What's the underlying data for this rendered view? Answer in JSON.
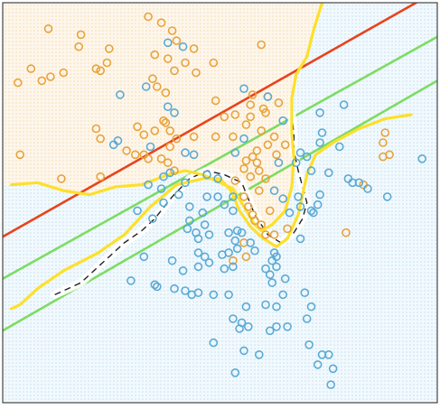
{
  "chart_data": {
    "type": "scatter",
    "title": "",
    "xlabel": "",
    "ylabel": "",
    "xlim": [
      0,
      100
    ],
    "ylim": [
      0,
      100
    ],
    "grid": false,
    "legend": "none",
    "colors": {
      "class_a": "#e8a33a",
      "class_b": "#5aaad6",
      "region_a": "#f6d9a8",
      "region_b": "#bcdff0",
      "linear_boundary": "#e8431c",
      "margin": "#7ddc62",
      "nonlinear_boundary": "#fde02a",
      "dashed_boundary": "#222222",
      "frame": "#444444"
    },
    "series": [
      {
        "class": "orange",
        "points": [
          [
            10.5,
            93.5
          ],
          [
            33.5,
            96.5
          ],
          [
            36.5,
            95
          ],
          [
            18,
            92
          ],
          [
            17.5,
            89
          ],
          [
            24.5,
            88.5
          ],
          [
            39,
            93
          ],
          [
            40,
            90.5
          ],
          [
            59.5,
            89.5
          ],
          [
            44,
            88.5
          ],
          [
            6.5,
            83.5
          ],
          [
            11,
            81.5
          ],
          [
            3.5,
            80
          ],
          [
            9,
            80.5
          ],
          [
            14,
            82.5
          ],
          [
            21.5,
            83.5
          ],
          [
            24,
            85
          ],
          [
            22.5,
            83
          ],
          [
            35,
            87
          ],
          [
            38,
            86
          ],
          [
            42,
            85
          ],
          [
            39.5,
            83
          ],
          [
            44.5,
            82.5
          ],
          [
            48.5,
            85
          ],
          [
            34.5,
            81
          ],
          [
            35.5,
            79
          ],
          [
            37.5,
            77.5
          ],
          [
            49,
            75.5
          ],
          [
            57.5,
            77
          ],
          [
            61,
            76.5
          ],
          [
            51,
            71.5
          ],
          [
            57,
            74.5
          ],
          [
            60,
            73.5
          ],
          [
            63.5,
            75
          ],
          [
            37,
            70.5
          ],
          [
            35,
            68
          ],
          [
            38.5,
            68
          ],
          [
            53.5,
            72
          ],
          [
            57,
            71.5
          ],
          [
            56,
            69.5
          ],
          [
            60.5,
            72.5
          ],
          [
            21.5,
            68.5
          ],
          [
            22.5,
            66
          ],
          [
            31,
            69
          ],
          [
            32.5,
            67
          ],
          [
            37.5,
            70
          ],
          [
            40,
            66
          ],
          [
            38.5,
            64
          ],
          [
            44,
            66.5
          ],
          [
            49,
            66.5
          ],
          [
            53,
            66.5
          ],
          [
            59.5,
            68
          ],
          [
            62.5,
            66.5
          ],
          [
            65,
            64.5
          ],
          [
            61,
            64.5
          ],
          [
            58.5,
            63
          ],
          [
            63,
            62
          ],
          [
            28.5,
            63
          ],
          [
            30.5,
            62
          ],
          [
            32.5,
            62
          ],
          [
            4,
            62
          ],
          [
            33.5,
            61
          ],
          [
            36.5,
            61
          ],
          [
            38,
            60
          ],
          [
            39.5,
            58
          ],
          [
            56,
            60.5
          ],
          [
            57.5,
            61.5
          ],
          [
            55.5,
            58.5
          ],
          [
            57,
            56.5
          ],
          [
            59,
            58
          ],
          [
            60.5,
            56
          ],
          [
            58.5,
            60
          ],
          [
            13.5,
            56
          ],
          [
            22.5,
            56.5
          ],
          [
            53.5,
            55.5
          ],
          [
            59,
            53
          ],
          [
            55.5,
            51.5
          ],
          [
            56.5,
            49
          ],
          [
            57.5,
            47
          ],
          [
            61.5,
            48
          ],
          [
            58,
            45.5
          ],
          [
            59.5,
            44.5
          ],
          [
            60.5,
            42
          ],
          [
            62.5,
            42
          ],
          [
            65.5,
            43.5
          ],
          [
            88,
            67.5
          ],
          [
            87.5,
            65
          ],
          [
            89,
            62
          ],
          [
            87.5,
            61.5
          ],
          [
            83,
            54.5
          ],
          [
            79,
            42.5
          ],
          [
            55.5,
            40
          ],
          [
            53,
            35.5
          ],
          [
            56,
            36.5
          ]
        ]
      },
      {
        "class": "blue",
        "points": [
          [
            38,
            90
          ],
          [
            41.5,
            89
          ],
          [
            27,
            77
          ],
          [
            33,
            79
          ],
          [
            38,
            74
          ],
          [
            39.5,
            72.5
          ],
          [
            55.5,
            78.5
          ],
          [
            61,
            76.5
          ],
          [
            73,
            72.5
          ],
          [
            78.5,
            74.5
          ],
          [
            64.5,
            70.5
          ],
          [
            55.5,
            66
          ],
          [
            73.5,
            67.5
          ],
          [
            25.5,
            64.5
          ],
          [
            26.5,
            65.5
          ],
          [
            34,
            64
          ],
          [
            42,
            62.5
          ],
          [
            44,
            62
          ],
          [
            53.5,
            62.5
          ],
          [
            63.5,
            60
          ],
          [
            68.5,
            62.5
          ],
          [
            70,
            61.5
          ],
          [
            73,
            65
          ],
          [
            77.5,
            64
          ],
          [
            96.5,
            61
          ],
          [
            67.5,
            60
          ],
          [
            38.5,
            57.5
          ],
          [
            37,
            56.5
          ],
          [
            42,
            55
          ],
          [
            47,
            57
          ],
          [
            49.5,
            56
          ],
          [
            71,
            58
          ],
          [
            75,
            57.5
          ],
          [
            79.5,
            56
          ],
          [
            80.5,
            55
          ],
          [
            33.5,
            54.5
          ],
          [
            36.5,
            53.5
          ],
          [
            40.5,
            52
          ],
          [
            47,
            51.5
          ],
          [
            49.5,
            51.5
          ],
          [
            53,
            51.5
          ],
          [
            62.5,
            53
          ],
          [
            64.5,
            51
          ],
          [
            68,
            51.5
          ],
          [
            73,
            52
          ],
          [
            82,
            55
          ],
          [
            84,
            53.5
          ],
          [
            88.5,
            51.5
          ],
          [
            37,
            50
          ],
          [
            43,
            49
          ],
          [
            46,
            47.5
          ],
          [
            51,
            49.5
          ],
          [
            53,
            48
          ],
          [
            66,
            47.5
          ],
          [
            68.5,
            49
          ],
          [
            71,
            48
          ],
          [
            71.5,
            47.5
          ],
          [
            72.5,
            49.5
          ],
          [
            31,
            48
          ],
          [
            34.5,
            46
          ],
          [
            43,
            45.5
          ],
          [
            46.5,
            44.5
          ],
          [
            44.5,
            42.5
          ],
          [
            42.5,
            43.5
          ],
          [
            45,
            41
          ],
          [
            47.5,
            42
          ],
          [
            52,
            42.5
          ],
          [
            54,
            43
          ],
          [
            55,
            42.5
          ],
          [
            68.5,
            41
          ],
          [
            53.5,
            40.5
          ],
          [
            57,
            40
          ],
          [
            62.5,
            37.5
          ],
          [
            45,
            37.5
          ],
          [
            46.5,
            36.5
          ],
          [
            50.5,
            37
          ],
          [
            52,
            37.5
          ],
          [
            54,
            38.5
          ],
          [
            58,
            38
          ],
          [
            62,
            35.5
          ],
          [
            63,
            36.5
          ],
          [
            32.5,
            36.5
          ],
          [
            39,
            35.5
          ],
          [
            45,
            34
          ],
          [
            47.5,
            35
          ],
          [
            41.5,
            33
          ],
          [
            51,
            33.5
          ],
          [
            53,
            34
          ],
          [
            60.5,
            33.5
          ],
          [
            61.5,
            32
          ],
          [
            63,
            34
          ],
          [
            29.5,
            30.5
          ],
          [
            35,
            29.5
          ],
          [
            62,
            30
          ],
          [
            65,
            31
          ],
          [
            35.5,
            29
          ],
          [
            39.5,
            28.5
          ],
          [
            42,
            28
          ],
          [
            43.5,
            27
          ],
          [
            45,
            27.5
          ],
          [
            48.5,
            27
          ],
          [
            52,
            27
          ],
          [
            56,
            24
          ],
          [
            60.5,
            24.5
          ],
          [
            63,
            24
          ],
          [
            64.5,
            27
          ],
          [
            69.5,
            27.5
          ],
          [
            71,
            24
          ],
          [
            55,
            20
          ],
          [
            53,
            21
          ],
          [
            54.5,
            18.5
          ],
          [
            56.5,
            19
          ],
          [
            61.5,
            18
          ],
          [
            63,
            19
          ],
          [
            65.5,
            19
          ],
          [
            70,
            21
          ],
          [
            48.5,
            15
          ],
          [
            70.5,
            14.5
          ],
          [
            55.5,
            13
          ],
          [
            59,
            12
          ],
          [
            73.5,
            12
          ],
          [
            75,
            12
          ],
          [
            76,
            8.5
          ],
          [
            72.5,
            9.5
          ],
          [
            53.5,
            7.5
          ],
          [
            75.5,
            4.5
          ]
        ]
      }
    ],
    "linear_boundary": [
      [
        0,
        41.5
      ],
      [
        100,
        103
      ]
    ],
    "margins": [
      [
        [
          0,
          31
        ],
        [
          100,
          91.5
        ]
      ],
      [
        [
          0,
          18
        ],
        [
          100,
          80.5
        ]
      ]
    ],
    "nonlinear_boundary": [
      [
        [
          2,
          54.5
        ],
        [
          8,
          55
        ],
        [
          14,
          53
        ],
        [
          20,
          52
        ],
        [
          26,
          54
        ],
        [
          32,
          54.5
        ],
        [
          38,
          57
        ],
        [
          42,
          58
        ],
        [
          46,
          57
        ],
        [
          50,
          55
        ],
        [
          53,
          53.5
        ],
        [
          55.5,
          49
        ],
        [
          58,
          44.5
        ],
        [
          59.5,
          43
        ],
        [
          62,
          44.5
        ],
        [
          65,
          48
        ],
        [
          66.5,
          54
        ],
        [
          67,
          61
        ],
        [
          66.5,
          67.5
        ],
        [
          66.5,
          76
        ],
        [
          67.5,
          82
        ],
        [
          70,
          86.5
        ],
        [
          71.5,
          93
        ],
        [
          73.5,
          100
        ]
      ],
      [
        [
          2,
          23.5
        ],
        [
          4,
          24.5
        ],
        [
          8,
          28.5
        ],
        [
          14,
          33
        ],
        [
          22,
          37.5
        ],
        [
          28,
          42
        ],
        [
          34,
          49
        ],
        [
          40,
          54.5
        ],
        [
          46,
          56
        ],
        [
          50,
          56
        ],
        [
          52.5,
          53
        ],
        [
          54.5,
          48
        ],
        [
          57,
          44
        ],
        [
          60,
          41
        ],
        [
          63,
          39
        ],
        [
          65.5,
          41
        ],
        [
          68,
          47
        ],
        [
          69,
          52
        ],
        [
          70,
          57
        ],
        [
          72,
          62
        ],
        [
          76,
          65
        ],
        [
          82,
          68.5
        ],
        [
          88,
          71
        ],
        [
          94,
          72
        ]
      ]
    ],
    "dashed_boundary": [
      [
        [
          12,
          27
        ],
        [
          18,
          30
        ],
        [
          24,
          36
        ],
        [
          28,
          40
        ],
        [
          32,
          43
        ],
        [
          35,
          46
        ],
        [
          39,
          51.5
        ],
        [
          43,
          56
        ],
        [
          47,
          58
        ],
        [
          51,
          57
        ],
        [
          55,
          55
        ],
        [
          58,
          47
        ],
        [
          61,
          42
        ],
        [
          64,
          40
        ],
        [
          67,
          42.5
        ],
        [
          69,
          46
        ],
        [
          70,
          50
        ],
        [
          69,
          54
        ],
        [
          68,
          58
        ],
        [
          67,
          63
        ],
        [
          67,
          67
        ],
        [
          66.5,
          72
        ]
      ]
    ]
  }
}
